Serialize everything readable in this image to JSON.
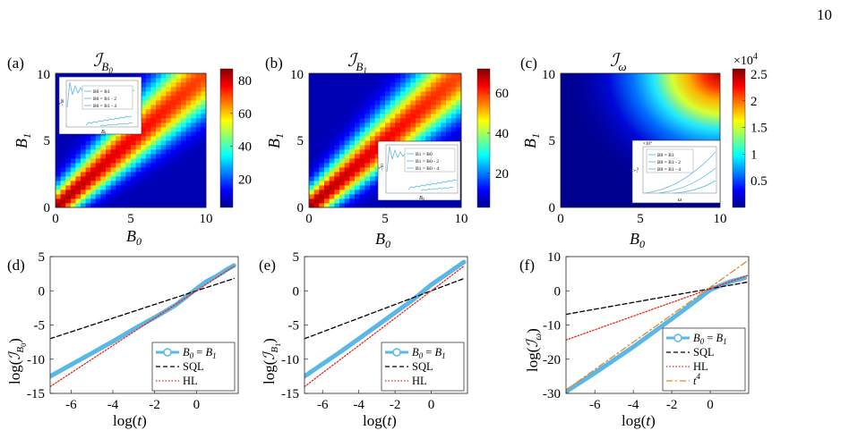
{
  "page_number": "10",
  "chart_data": [
    {
      "id": "a",
      "panel_label": "(a)",
      "type": "heatmap",
      "title": "I_{B0}",
      "xlabel": "B0",
      "ylabel": "B1",
      "xlim": [
        0,
        10
      ],
      "ylim": [
        0,
        10
      ],
      "xticks": [
        "0",
        "5",
        "10"
      ],
      "yticks": [
        "0",
        "5",
        "10"
      ],
      "colorbar": {
        "min": 3,
        "max": 87,
        "ticks": [
          "20",
          "40",
          "60",
          "80"
        ],
        "tick_values": [
          20,
          40,
          60,
          80
        ]
      },
      "ridge": "B1 = B0",
      "inset": {
        "ylabel": "I_B0",
        "xlabel": "B1",
        "legend": [
          "B0 = B1",
          "B0 = B1 - 2",
          "B0 = B1 - 4"
        ]
      }
    },
    {
      "id": "b",
      "panel_label": "(b)",
      "type": "heatmap",
      "title": "I_{B1}",
      "xlabel": "B0",
      "ylabel": "B1",
      "xlim": [
        0,
        10
      ],
      "ylim": [
        0,
        10
      ],
      "xticks": [
        "0",
        "5",
        "10"
      ],
      "yticks": [
        "0",
        "5",
        "10"
      ],
      "colorbar": {
        "min": 3,
        "max": 72,
        "ticks": [
          "20",
          "40",
          "60"
        ],
        "tick_values": [
          20,
          40,
          60
        ]
      },
      "ridge": "B1 = B0",
      "inset": {
        "ylabel": "I_B1",
        "xlabel": "B0",
        "legend": [
          "B1 = B0",
          "B1 = B0 - 2",
          "B1 = B0 - 4"
        ]
      }
    },
    {
      "id": "c",
      "panel_label": "(c)",
      "type": "heatmap",
      "title": "I_ω",
      "xlabel": "B0",
      "ylabel": "B1",
      "xlim": [
        0,
        10
      ],
      "ylim": [
        0,
        10
      ],
      "xticks": [
        "0",
        "5",
        "10"
      ],
      "yticks": [
        "0",
        "5",
        "10"
      ],
      "colorbar": {
        "min": 0,
        "max": 2.6,
        "multiplier": "×10^4",
        "ticks": [
          "0.5",
          "1",
          "1.5",
          "2",
          "2.5"
        ],
        "tick_values": [
          0.5,
          1,
          1.5,
          2,
          2.5
        ]
      },
      "inset": {
        "ylabel": "I_ω",
        "xlabel": "ω",
        "multiplier": "×10^4",
        "legend": [
          "B0 = B1",
          "B0 = B1 - 2",
          "B0 = B1 - 4"
        ]
      }
    },
    {
      "id": "d",
      "panel_label": "(d)",
      "type": "line",
      "xlabel": "log(t)",
      "ylabel": "log(I_B0)",
      "xlim": [
        -7,
        2
      ],
      "ylim": [
        -15,
        5
      ],
      "xticks": [
        -6,
        -4,
        -2,
        0
      ],
      "yticks": [
        -15,
        -10,
        -5,
        0,
        5
      ],
      "legend_position": "bottom-right",
      "series": [
        {
          "name": "B0 = B1",
          "x": [
            -7,
            -6,
            -5,
            -4,
            -3,
            -2,
            -1,
            0,
            0.5,
            1,
            1.5,
            1.8
          ],
          "y": [
            -12.5,
            -10.8,
            -9.1,
            -7.4,
            -5.6,
            -3.9,
            -2.1,
            0.3,
            1.4,
            2.2,
            3.2,
            3.7
          ]
        },
        {
          "name": "SQL",
          "x": [
            -7,
            1.8
          ],
          "y": [
            -7,
            1.8
          ]
        },
        {
          "name": "HL",
          "x": [
            -7,
            1.8
          ],
          "y": [
            -14,
            3.6
          ]
        }
      ]
    },
    {
      "id": "e",
      "panel_label": "(e)",
      "type": "line",
      "xlabel": "log(t)",
      "ylabel": "log(I_B1)",
      "xlim": [
        -7,
        2
      ],
      "ylim": [
        -15,
        5
      ],
      "xticks": [
        -6,
        -4,
        -2,
        0
      ],
      "yticks": [
        -15,
        -10,
        -5,
        0,
        5
      ],
      "legend_position": "bottom-right",
      "series": [
        {
          "name": "B0 = B1",
          "x": [
            -7,
            -6,
            -5,
            -4,
            -3,
            -2,
            -1,
            0,
            1,
            1.8
          ],
          "y": [
            -12.5,
            -10.7,
            -8.9,
            -7.0,
            -5.1,
            -3.2,
            -1.3,
            0.9,
            2.7,
            4.2
          ]
        },
        {
          "name": "SQL",
          "x": [
            -7,
            1.8
          ],
          "y": [
            -7,
            1.8
          ]
        },
        {
          "name": "HL",
          "x": [
            -7,
            1.8
          ],
          "y": [
            -14,
            3.6
          ]
        }
      ]
    },
    {
      "id": "f",
      "panel_label": "(f)",
      "type": "line",
      "xlabel": "log(t)",
      "ylabel": "log(I_ω)",
      "xlim": [
        -7.5,
        2
      ],
      "ylim": [
        -30,
        10
      ],
      "xticks": [
        -6,
        -4,
        -2,
        0
      ],
      "yticks": [
        -30,
        -20,
        -10,
        0,
        10
      ],
      "legend_position": "bottom-right",
      "series": [
        {
          "name": "B0 = B1",
          "x": [
            -7.5,
            -6,
            -4,
            -2,
            -1,
            0,
            1,
            1.8
          ],
          "y": [
            -29.5,
            -24,
            -16.4,
            -8.2,
            -4.0,
            0.3,
            2.6,
            3.8
          ]
        },
        {
          "name": "SQL",
          "x": [
            -7.5,
            2
          ],
          "y": [
            -6.9,
            2.6
          ]
        },
        {
          "name": "HL",
          "x": [
            -7.5,
            2
          ],
          "y": [
            -14.4,
            4.6
          ]
        },
        {
          "name": "t^4",
          "x": [
            -7.5,
            2
          ],
          "y": [
            -29,
            9
          ]
        }
      ]
    }
  ]
}
